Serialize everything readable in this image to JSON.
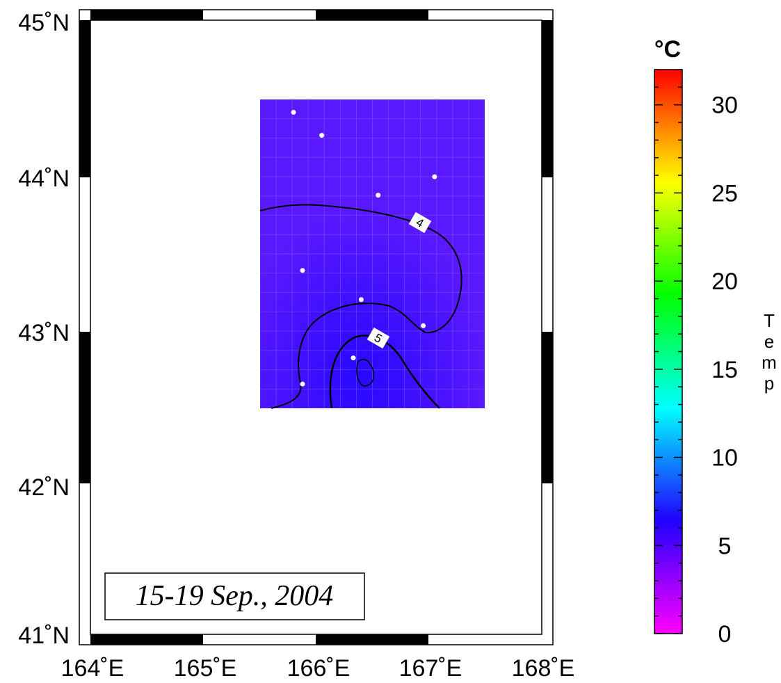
{
  "map": {
    "lon_range": [
      164,
      168
    ],
    "lat_range": [
      41,
      45
    ],
    "lon_labels": [
      "164˚E",
      "165˚E",
      "166˚E",
      "167˚E",
      "168˚E"
    ],
    "lat_labels": [
      "41˚N",
      "42˚N",
      "43˚N",
      "44˚N",
      "45˚N"
    ],
    "date_text": "15-19 Sep., 2004",
    "data_region": {
      "lon": [
        165.5,
        167.5
      ],
      "lat": [
        42.5,
        44.5
      ]
    },
    "stations": [
      {
        "lon": 165.8,
        "lat": 44.4
      },
      {
        "lon": 166.05,
        "lat": 44.25
      },
      {
        "lon": 167.05,
        "lat": 43.98
      },
      {
        "lon": 166.55,
        "lat": 43.86
      },
      {
        "lon": 165.88,
        "lat": 43.37
      },
      {
        "lon": 166.4,
        "lat": 43.18
      },
      {
        "lon": 166.95,
        "lat": 43.01
      },
      {
        "lon": 166.33,
        "lat": 42.8
      },
      {
        "lon": 165.88,
        "lat": 42.63
      }
    ],
    "contours": [
      {
        "level": "4",
        "label": "4"
      },
      {
        "level": "5",
        "label": "5"
      }
    ]
  },
  "colorbar": {
    "unit": "°C",
    "label": "Temp",
    "label_letters": [
      "T",
      "e",
      "m",
      "p"
    ],
    "ticks": [
      "0",
      "5",
      "10",
      "15",
      "20",
      "25",
      "30"
    ],
    "tick_values": [
      0,
      5,
      10,
      15,
      20,
      25,
      30
    ],
    "range": [
      0,
      32
    ],
    "colormap": [
      "#ff00ff",
      "#0000ff",
      "#00ffff",
      "#00ff00",
      "#ffff00",
      "#ff0000"
    ]
  },
  "colors": {
    "field_base": "#5a14ff",
    "field_cool": "#2a10ff",
    "station": "#ffffff",
    "contour": "#000000"
  }
}
